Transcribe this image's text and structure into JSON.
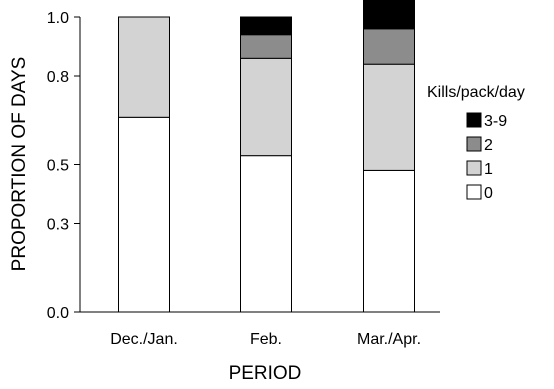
{
  "chart_data": {
    "type": "bar",
    "stacked": true,
    "xlabel": "PERIOD",
    "ylabel": "PROPORTION OF DAYS",
    "ylim": [
      0,
      1.0
    ],
    "yticks": [
      0.0,
      0.3,
      0.5,
      0.8,
      1.0
    ],
    "ytick_labels": [
      "0.0",
      "0.3",
      "0.5",
      "0.8",
      "1.0"
    ],
    "categories": [
      "Dec./Jan.",
      "Feb.",
      "Mar./Apr."
    ],
    "series": [
      {
        "name": "0",
        "values": [
          0.66,
          0.53,
          0.48
        ],
        "color": "#ffffff"
      },
      {
        "name": "1",
        "values": [
          0.34,
          0.33,
          0.36
        ],
        "color": "#d3d3d3"
      },
      {
        "name": "2",
        "values": [
          0.0,
          0.08,
          0.12
        ],
        "color": "#8c8c8c"
      },
      {
        "name": "3-9",
        "values": [
          0.0,
          0.06,
          0.12
        ],
        "color": "#000000"
      }
    ],
    "legend": {
      "title": "Kills/pack/day",
      "placement": "right",
      "order": [
        "3-9",
        "2",
        "1",
        "0"
      ]
    },
    "grid": false
  }
}
